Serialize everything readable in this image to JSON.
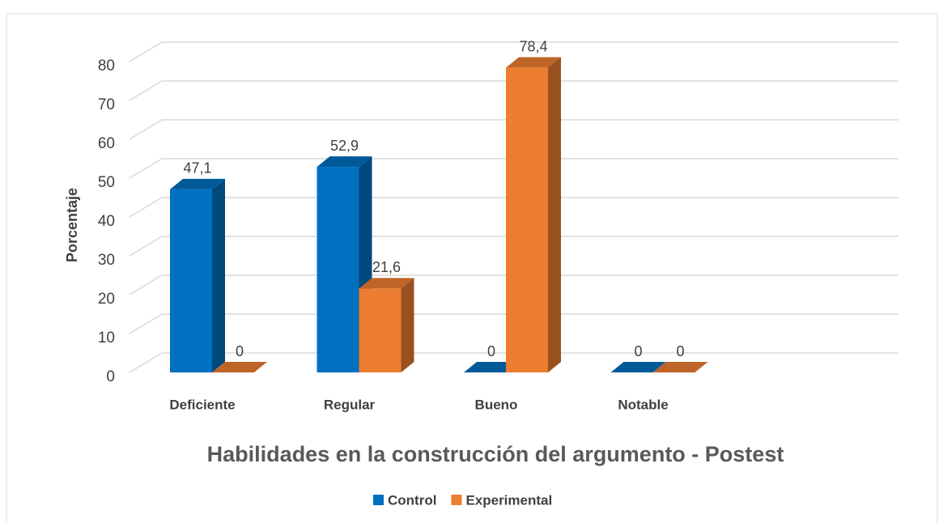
{
  "chart_data": {
    "type": "bar3d",
    "title": "Habilidades en la construcción del argumento - Postest",
    "y_label": "Porcentaje",
    "categories": [
      "Deficiente",
      "Regular",
      "Bueno",
      "Notable"
    ],
    "series": [
      {
        "name": "Control",
        "color": "#0070c0",
        "values": [
          47.1,
          52.9,
          0,
          0
        ],
        "value_labels": [
          "47,1",
          "52,9",
          "0",
          "0"
        ]
      },
      {
        "name": "Experimental",
        "color": "#ed7d31",
        "values": [
          0,
          21.6,
          78.4,
          0
        ],
        "value_labels": [
          "0",
          "21,6",
          "78,4",
          "0"
        ]
      }
    ],
    "ylim": [
      0,
      80
    ],
    "yticks": [
      0,
      10,
      20,
      30,
      40,
      50,
      60,
      70,
      80
    ],
    "grid": true
  }
}
